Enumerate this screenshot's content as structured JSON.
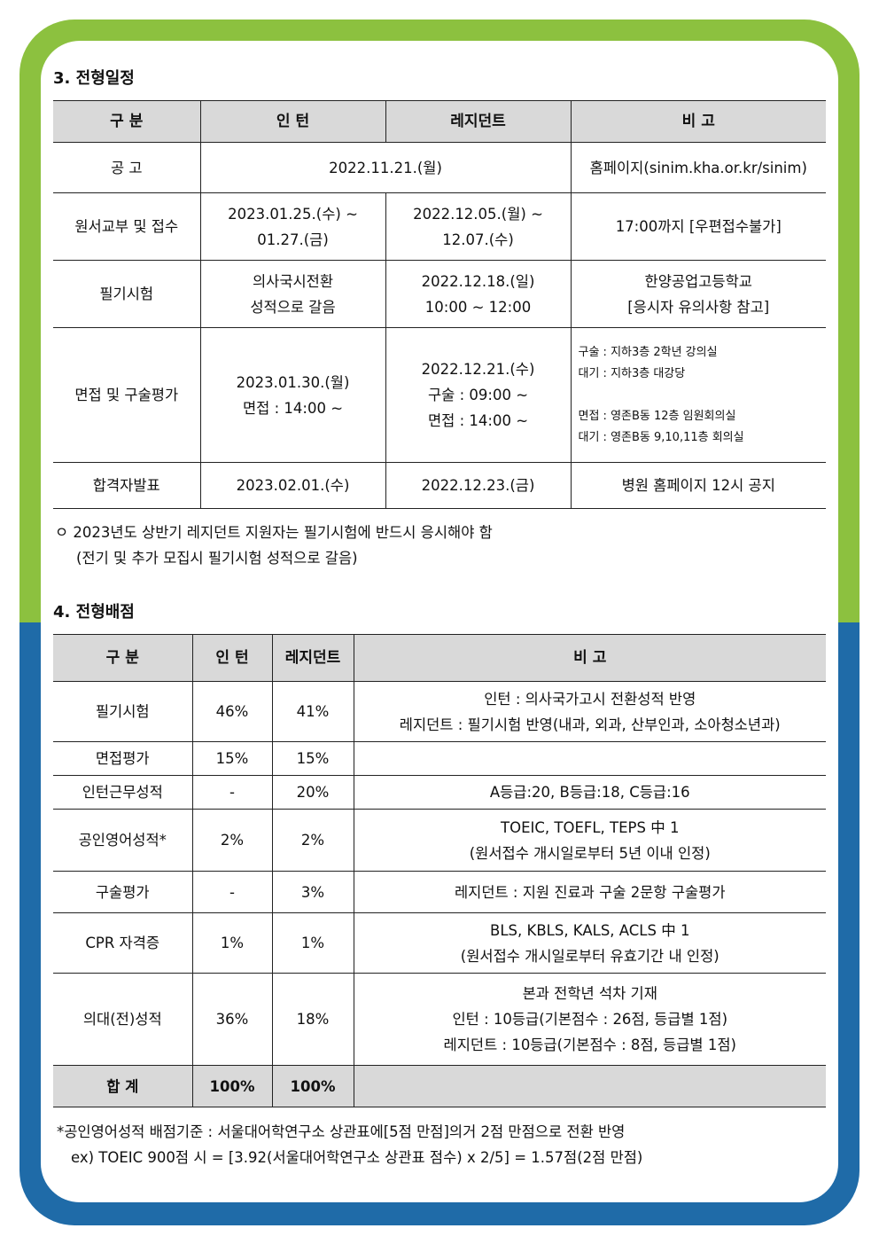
{
  "section3": {
    "title": "3. 전형일정",
    "headers": [
      "구 분",
      "인 턴",
      "레지던트",
      "비 고"
    ],
    "rows": {
      "notice": {
        "label": "공 고",
        "date": "2022.11.21.(월)",
        "note": "홈페이지(sinim.kha.or.kr/sinim)"
      },
      "application": {
        "label": "원서교부 및 접수",
        "intern": [
          "2023.01.25.(수) ~",
          "01.27.(금)"
        ],
        "resident": [
          "2022.12.05.(월) ~",
          "12.07.(수)"
        ],
        "note": "17:00까지 [우편접수불가]"
      },
      "written": {
        "label": "필기시험",
        "intern": [
          "의사국시전환",
          "성적으로 갈음"
        ],
        "resident": [
          "2022.12.18.(일)",
          "10:00 ~ 12:00"
        ],
        "note": [
          "한양공업고등학교",
          "[응시자 유의사항 참고]"
        ]
      },
      "interview": {
        "label": "면접 및 구술평가",
        "intern": [
          "2023.01.30.(월)",
          "면접 : 14:00 ~"
        ],
        "resident": [
          "2022.12.21.(수)",
          "구술 : 09:00 ~",
          "면접 : 14:00 ~"
        ],
        "note": [
          "구술 : 지하3층 2학년 강의실",
          "대기 : 지하3층 대강당",
          "",
          "면접 : 영존B동 12층 임원회의실",
          "대기 : 영존B동 9,10,11층 회의실"
        ]
      },
      "announcement": {
        "label": "합격자발표",
        "intern": "2023.02.01.(수)",
        "resident": "2022.12.23.(금)",
        "note": "병원 홈페이지 12시 공지"
      }
    },
    "footnote": [
      "ㅇ 2023년도 상반기 레지던트 지원자는 필기시험에 반드시 응시해야 함",
      "(전기 및 추가 모집시 필기시험 성적으로 갈음)"
    ]
  },
  "section4": {
    "title": "4. 전형배점",
    "headers": [
      "구 분",
      "인 턴",
      "레지던트",
      "비 고"
    ],
    "rows": [
      {
        "label": "필기시험",
        "intern": "46%",
        "resident": "41%",
        "note": [
          "인턴 : 의사국가고시 전환성적 반영",
          "레지던트 : 필기시험 반영(내과, 외과, 산부인과, 소아청소년과)"
        ]
      },
      {
        "label": "면접평가",
        "intern": "15%",
        "resident": "15%",
        "note": [
          ""
        ]
      },
      {
        "label": "인턴근무성적",
        "intern": "-",
        "resident": "20%",
        "note": [
          "A등급:20, B등급:18, C등급:16"
        ]
      },
      {
        "label": "공인영어성적*",
        "intern": "2%",
        "resident": "2%",
        "note": [
          "TOEIC, TOEFL, TEPS 中 1",
          "(원서접수 개시일로부터 5년 이내 인정)"
        ]
      },
      {
        "label": "구술평가",
        "intern": "-",
        "resident": "3%",
        "note": [
          "레지던트 : 지원 진료과 구술 2문항 구술평가"
        ]
      },
      {
        "label": "CPR 자격증",
        "intern": "1%",
        "resident": "1%",
        "note": [
          "BLS, KBLS, KALS, ACLS 中 1",
          "(원서접수 개시일로부터 유효기간 내 인정)"
        ]
      },
      {
        "label": "의대(전)성적",
        "intern": "36%",
        "resident": "18%",
        "note": [
          "본과 전학년 석차 기재",
          "인턴 : 10등급(기본점수 : 26점, 등급별 1점)",
          "레지던트 : 10등급(기본점수 : 8점, 등급별 1점)"
        ]
      }
    ],
    "total": {
      "label": "합 계",
      "intern": "100%",
      "resident": "100%",
      "note": ""
    },
    "footnote": [
      "*공인영어성적 배점기준 : 서울대어학연구소 상관표에[5점 만점]의거 2점 만점으로 전환 반영",
      "ex) TOEIC 900점 시 = [3.92(서울대어학연구소 상관표 점수) x 2/5] = 1.57점(2점 만점)"
    ]
  },
  "colors": {
    "frame_top": "#8cc13f",
    "frame_bottom": "#1f6ba8",
    "header_bg": "#d9d9d9"
  }
}
